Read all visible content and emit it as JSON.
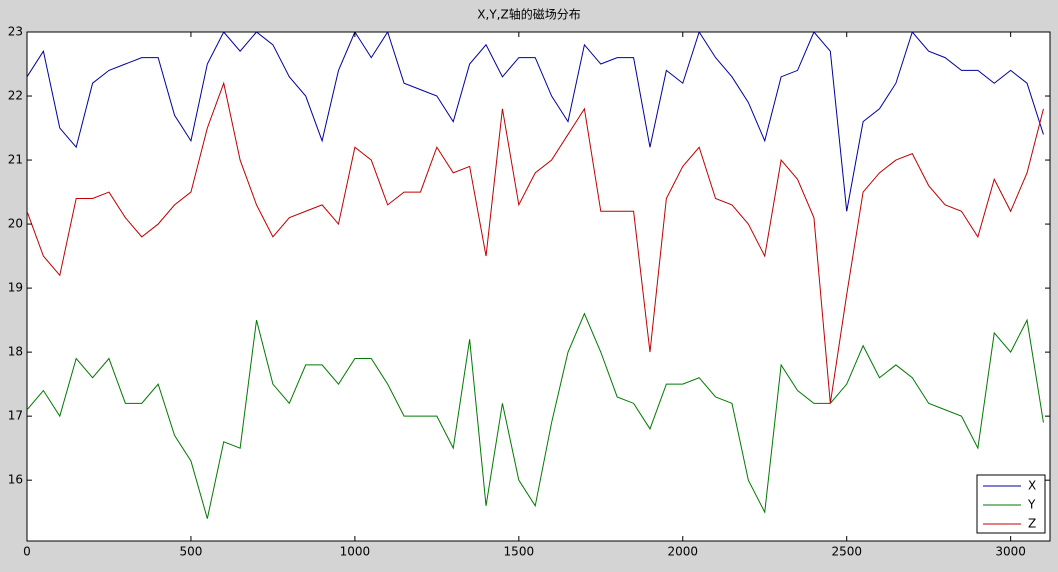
{
  "chart_data": {
    "type": "line",
    "title": "X,Y,Z轴的磁场分布",
    "x": [
      0,
      50,
      100,
      150,
      200,
      250,
      300,
      350,
      400,
      450,
      500,
      550,
      600,
      650,
      700,
      750,
      800,
      850,
      900,
      950,
      1000,
      1050,
      1100,
      1150,
      1200,
      1250,
      1300,
      1350,
      1400,
      1450,
      1500,
      1550,
      1600,
      1650,
      1700,
      1750,
      1800,
      1850,
      1900,
      1950,
      2000,
      2050,
      2100,
      2150,
      2200,
      2250,
      2300,
      2350,
      2400,
      2450,
      2500,
      2550,
      2600,
      2650,
      2700,
      2750,
      2800,
      2850,
      2900,
      2950,
      3000,
      3050,
      3100
    ],
    "series": [
      {
        "name": "X",
        "color": "#0000a0",
        "values": [
          22.3,
          22.7,
          21.5,
          21.2,
          22.2,
          22.4,
          22.5,
          22.6,
          22.6,
          21.7,
          21.3,
          22.5,
          23,
          22.7,
          23,
          22.8,
          22.3,
          22.0,
          21.3,
          22.4,
          23,
          22.6,
          23,
          22.2,
          22.1,
          22.0,
          21.6,
          22.5,
          22.8,
          22.3,
          22.6,
          22.6,
          22.0,
          21.6,
          22.8,
          22.5,
          22.6,
          22.6,
          21.2,
          22.4,
          22.2,
          23,
          22.6,
          22.3,
          21.9,
          21.3,
          22.3,
          22.4,
          23,
          22.7,
          20.2,
          21.6,
          21.8,
          22.2,
          23,
          22.7,
          22.6,
          22.4,
          22.4,
          22.2,
          22.4,
          22.2,
          21.4
        ]
      },
      {
        "name": "Y",
        "color": "#007a00",
        "values": [
          17.1,
          17.4,
          17.0,
          17.9,
          17.6,
          17.9,
          17.2,
          17.2,
          17.5,
          16.7,
          16.3,
          15.4,
          16.6,
          16.5,
          18.5,
          17.5,
          17.2,
          17.8,
          17.8,
          17.5,
          17.9,
          17.9,
          17.5,
          17.0,
          17.0,
          17.0,
          16.5,
          18.2,
          15.6,
          17.2,
          16.0,
          15.6,
          16.9,
          18.0,
          18.6,
          18.0,
          17.3,
          17.2,
          16.8,
          17.5,
          17.5,
          17.6,
          17.3,
          17.2,
          16.0,
          15.5,
          17.8,
          17.4,
          17.2,
          17.2,
          17.5,
          18.1,
          17.6,
          17.8,
          17.6,
          17.2,
          17.1,
          17.0,
          16.5,
          18.3,
          18.0,
          18.5,
          16.9
        ]
      },
      {
        "name": "Z",
        "color": "#c00000",
        "values": [
          20.2,
          19.5,
          19.2,
          20.4,
          20.4,
          20.5,
          20.1,
          19.8,
          20.0,
          20.3,
          20.5,
          21.5,
          22.2,
          21.0,
          20.3,
          19.8,
          20.1,
          20.2,
          20.3,
          20.0,
          21.2,
          21.0,
          20.3,
          20.5,
          20.5,
          21.2,
          20.8,
          20.9,
          19.5,
          21.8,
          20.3,
          20.8,
          21.0,
          21.4,
          21.8,
          20.2,
          20.2,
          20.2,
          18.0,
          20.4,
          20.9,
          21.2,
          20.4,
          20.3,
          20.0,
          19.5,
          21.0,
          20.7,
          20.1,
          17.2,
          18.9,
          20.5,
          20.8,
          21.0,
          21.1,
          20.6,
          20.3,
          20.2,
          19.8,
          20.7,
          20.2,
          20.8,
          21.8
        ]
      }
    ],
    "xlim": [
      0,
      3120
    ],
    "ylim": [
      15.05,
      23
    ],
    "xticks": [
      0,
      500,
      1000,
      1500,
      2000,
      2500,
      3000
    ],
    "yticks": [
      16,
      17,
      18,
      19,
      20,
      21,
      22,
      23
    ],
    "legend": "lower right"
  }
}
